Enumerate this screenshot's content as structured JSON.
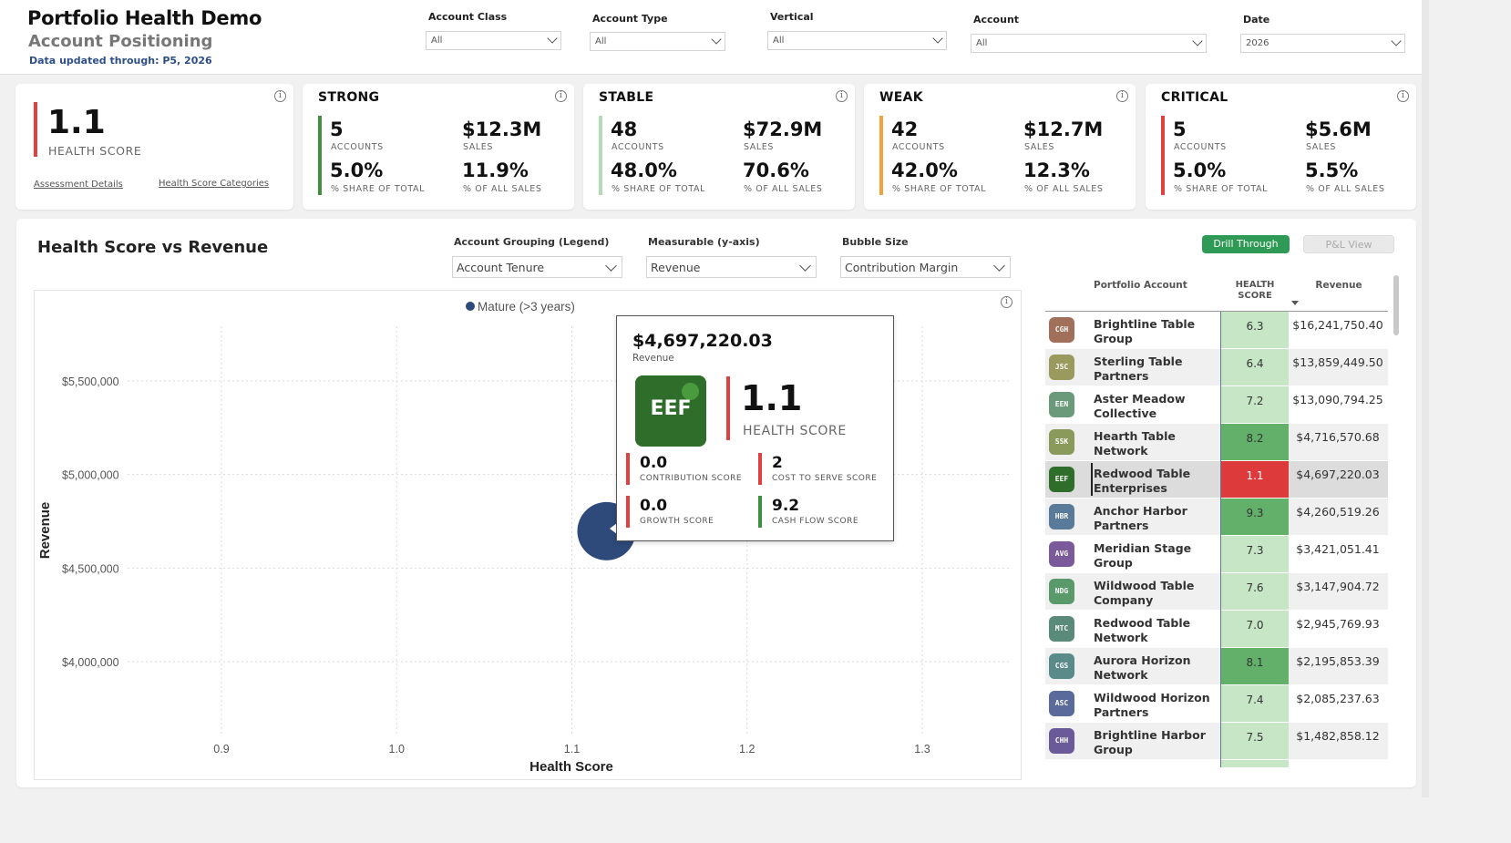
{
  "header": {
    "title": "Portfolio Health Demo",
    "subtitle": "Account Positioning",
    "updated": "Data updated through: P5, 2026",
    "filters": [
      {
        "label": "Account Class",
        "value": "All"
      },
      {
        "label": "Account Type",
        "value": "All"
      },
      {
        "label": "Vertical",
        "value": "All"
      },
      {
        "label": "Account",
        "value": "All"
      },
      {
        "label": "Date",
        "value": "2026"
      }
    ]
  },
  "summary": {
    "value": "1.1",
    "label": "HEALTH SCORE",
    "link1": "Assessment Details",
    "link2": "Health Score Categories",
    "bar_color": "#e0403f"
  },
  "kpis": [
    {
      "title": "STRONG",
      "accounts": "5",
      "accounts_label": "ACCOUNTS",
      "sales": "$12.3M",
      "sales_label": "SALES",
      "share": "5.0%",
      "share_label": "% SHARE OF TOTAL",
      "pct_sales": "11.9%",
      "pct_sales_label": "% OF ALL SALES",
      "color": "#3e8f3e"
    },
    {
      "title": "STABLE",
      "accounts": "48",
      "accounts_label": "ACCOUNTS",
      "sales": "$72.9M",
      "sales_label": "SALES",
      "share": "48.0%",
      "share_label": "% SHARE OF TOTAL",
      "pct_sales": "70.6%",
      "pct_sales_label": "% OF ALL SALES",
      "color": "#b4dcb4"
    },
    {
      "title": "WEAK",
      "accounts": "42",
      "accounts_label": "ACCOUNTS",
      "sales": "$12.7M",
      "sales_label": "SALES",
      "share": "42.0%",
      "share_label": "% SHARE OF TOTAL",
      "pct_sales": "12.3%",
      "pct_sales_label": "% OF ALL SALES",
      "color": "#f0a23c"
    },
    {
      "title": "CRITICAL",
      "accounts": "5",
      "accounts_label": "ACCOUNTS",
      "sales": "$5.6M",
      "sales_label": "SALES",
      "share": "5.0%",
      "share_label": "% SHARE OF TOTAL",
      "pct_sales": "5.5%",
      "pct_sales_label": "% OF ALL SALES",
      "color": "#e0403f"
    }
  ],
  "panel": {
    "title": "Health Score vs Revenue",
    "selects": [
      {
        "label": "Account Grouping (Legend)",
        "value": "Account Tenure"
      },
      {
        "label": "Measurable (y-axis)",
        "value": "Revenue"
      },
      {
        "label": "Bubble Size",
        "value": "Contribution Margin"
      }
    ],
    "buttons": {
      "drill": "Drill Through",
      "pl": "P&L View"
    }
  },
  "chart_data": {
    "type": "scatter",
    "xlabel": "Health Score",
    "ylabel": "Revenue",
    "xlim": [
      0.8,
      1.35
    ],
    "ylim": [
      3750000,
      5800000
    ],
    "x_ticks": [
      "0.9",
      "1.0",
      "1.1",
      "1.2",
      "1.3"
    ],
    "x_tick_values": [
      0.9,
      1.0,
      1.1,
      1.2,
      1.3
    ],
    "y_ticks": [
      "$4,000,000",
      "$4,500,000",
      "$5,000,000",
      "$5,500,000"
    ],
    "y_tick_values": [
      4000000,
      4500000,
      5000000,
      5500000
    ],
    "legend": {
      "position": "top",
      "entries": [
        {
          "name": "Mature (>3 years)",
          "color": "#2e4a7a"
        }
      ]
    },
    "series": [
      {
        "name": "Mature (>3 years)",
        "points": [
          {
            "x": 1.1,
            "y": 4697220.03,
            "label": "Redwood Table Enterprises"
          }
        ]
      }
    ]
  },
  "tooltip": {
    "revenue": "$4,697,220.03",
    "revenue_label": "Revenue",
    "logo": "EEF",
    "score": "1.1",
    "score_label": "HEALTH SCORE",
    "subscores": [
      {
        "value": "0.0",
        "label": "CONTRIBUTION SCORE",
        "color": "#e0403f"
      },
      {
        "value": "2",
        "label": "COST TO SERVE SCORE",
        "color": "#e0403f"
      },
      {
        "value": "0.0",
        "label": "GROWTH SCORE",
        "color": "#e0403f"
      },
      {
        "value": "9.2",
        "label": "CASH FLOW SCORE",
        "color": "#3e8f3e"
      }
    ]
  },
  "table": {
    "headers": {
      "account": "Portfolio Account",
      "score": "HEALTH\nSCORE",
      "revenue": "Revenue"
    },
    "rows": [
      {
        "badge": "CGH",
        "badge_color": "#a0705a",
        "line1": "Brightline Table",
        "line2": "Group",
        "score": "6.3",
        "revenue": "$16,241,750.40",
        "score_color": "#c6e6c6"
      },
      {
        "badge": "JSC",
        "badge_color": "#9a9a5e",
        "line1": "Sterling Table",
        "line2": "Partners",
        "score": "6.4",
        "revenue": "$13,859,449.50",
        "score_color": "#c6e6c6"
      },
      {
        "badge": "EEN",
        "badge_color": "#6a9a7a",
        "line1": "Aster Meadow",
        "line2": "Collective",
        "score": "7.2",
        "revenue": "$13,090,794.25",
        "score_color": "#c6e6c6"
      },
      {
        "badge": "SSK",
        "badge_color": "#8a9a5a",
        "line1": "Hearth Table",
        "line2": "Network",
        "score": "8.2",
        "revenue": "$4,716,570.68",
        "score_color": "#63b06a"
      },
      {
        "badge": "EEF",
        "badge_color": "#2f6e2a",
        "line1": "Redwood Table",
        "line2": "Enterprises",
        "score": "1.1",
        "revenue": "$4,697,220.03",
        "score_color": "#dd3b3b"
      },
      {
        "badge": "HBR",
        "badge_color": "#5a7a9a",
        "line1": "Anchor Harbor",
        "line2": "Partners",
        "score": "9.3",
        "revenue": "$4,260,519.26",
        "score_color": "#63b06a"
      },
      {
        "badge": "AVG",
        "badge_color": "#7a5a9a",
        "line1": "Meridian Stage",
        "line2": "Group",
        "score": "7.3",
        "revenue": "$3,421,051.41",
        "score_color": "#c6e6c6"
      },
      {
        "badge": "NDG",
        "badge_color": "#5a9a6a",
        "line1": "Wildwood Table",
        "line2": "Company",
        "score": "7.6",
        "revenue": "$3,147,904.72",
        "score_color": "#c6e6c6"
      },
      {
        "badge": "MTC",
        "badge_color": "#5a8a7a",
        "line1": "Redwood Table",
        "line2": "Network",
        "score": "7.0",
        "revenue": "$2,945,769.93",
        "score_color": "#c6e6c6"
      },
      {
        "badge": "CGS",
        "badge_color": "#5a8a8a",
        "line1": "Aurora Horizon",
        "line2": "Network",
        "score": "8.1",
        "revenue": "$2,195,853.39",
        "score_color": "#63b06a"
      },
      {
        "badge": "ASC",
        "badge_color": "#5a6a9a",
        "line1": "Wildwood Horizon",
        "line2": "Partners",
        "score": "7.4",
        "revenue": "$2,085,237.63",
        "score_color": "#c6e6c6"
      },
      {
        "badge": "CHH",
        "badge_color": "#6a5a9a",
        "line1": "Brightline Harbor",
        "line2": "Group",
        "score": "7.5",
        "revenue": "$1,482,858.12",
        "score_color": "#c6e6c6"
      }
    ]
  }
}
